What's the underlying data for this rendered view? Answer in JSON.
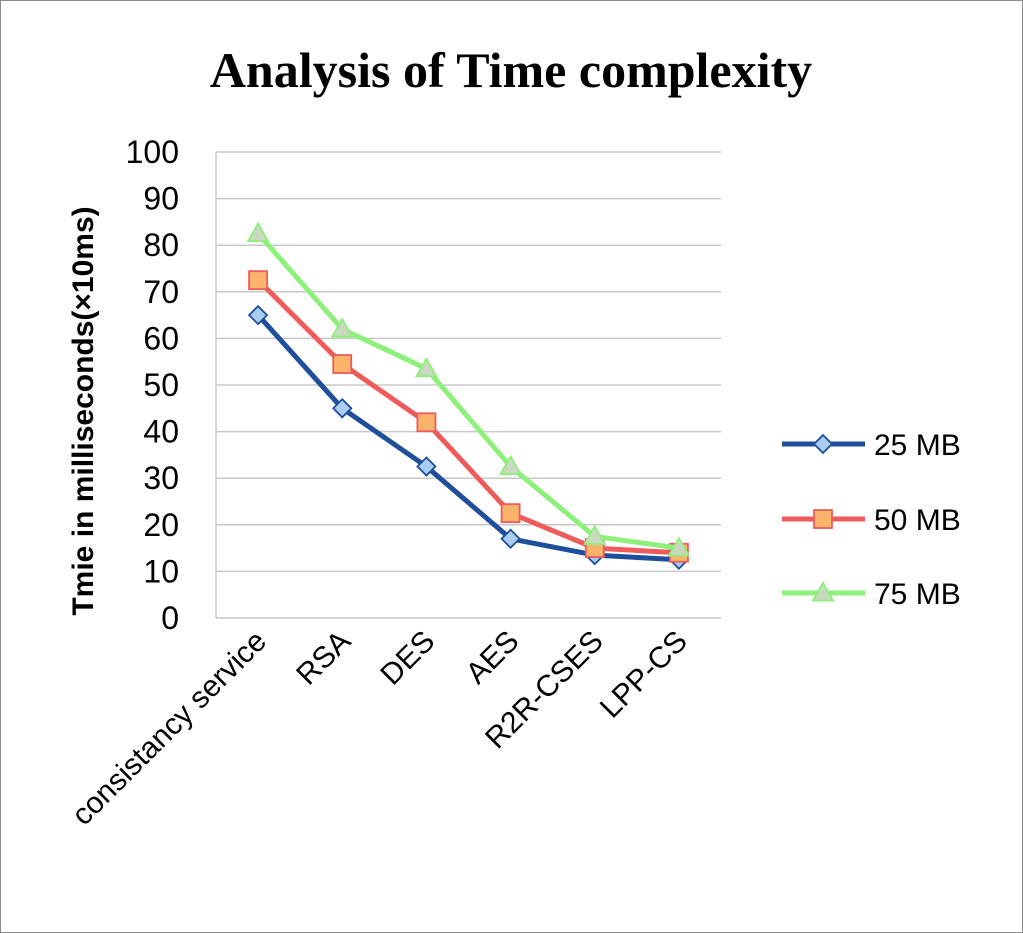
{
  "chart_data": {
    "type": "line",
    "title": "Analysis of Time complexity",
    "xlabel": "",
    "ylabel": "Tmie in milliseconds(×10ms)",
    "categories": [
      "consistancy service",
      "RSA",
      "DES",
      "AES",
      "R2R-CSES",
      "LPP-CS"
    ],
    "ylim": [
      0,
      100
    ],
    "yticks": [
      "0",
      "10",
      "20",
      "30",
      "40",
      "50",
      "60",
      "70",
      "80",
      "90",
      "100"
    ],
    "grid": true,
    "legend_position": "right",
    "series": [
      {
        "name": "25 MB",
        "values": [
          65,
          45,
          32.5,
          17,
          13.5,
          12.5
        ],
        "color": "#1f4e9c",
        "fill": "#a9cdef",
        "marker": "diamond"
      },
      {
        "name": "50 MB",
        "values": [
          72.5,
          54.5,
          42,
          22.5,
          15,
          14
        ],
        "color": "#ef5b5b",
        "fill": "#f9b36a",
        "marker": "square"
      },
      {
        "name": "75 MB",
        "values": [
          82.5,
          62,
          53.5,
          32.5,
          17.5,
          15
        ],
        "color": "#8cf07a",
        "fill": "#c9d9bf",
        "marker": "triangle"
      }
    ]
  }
}
